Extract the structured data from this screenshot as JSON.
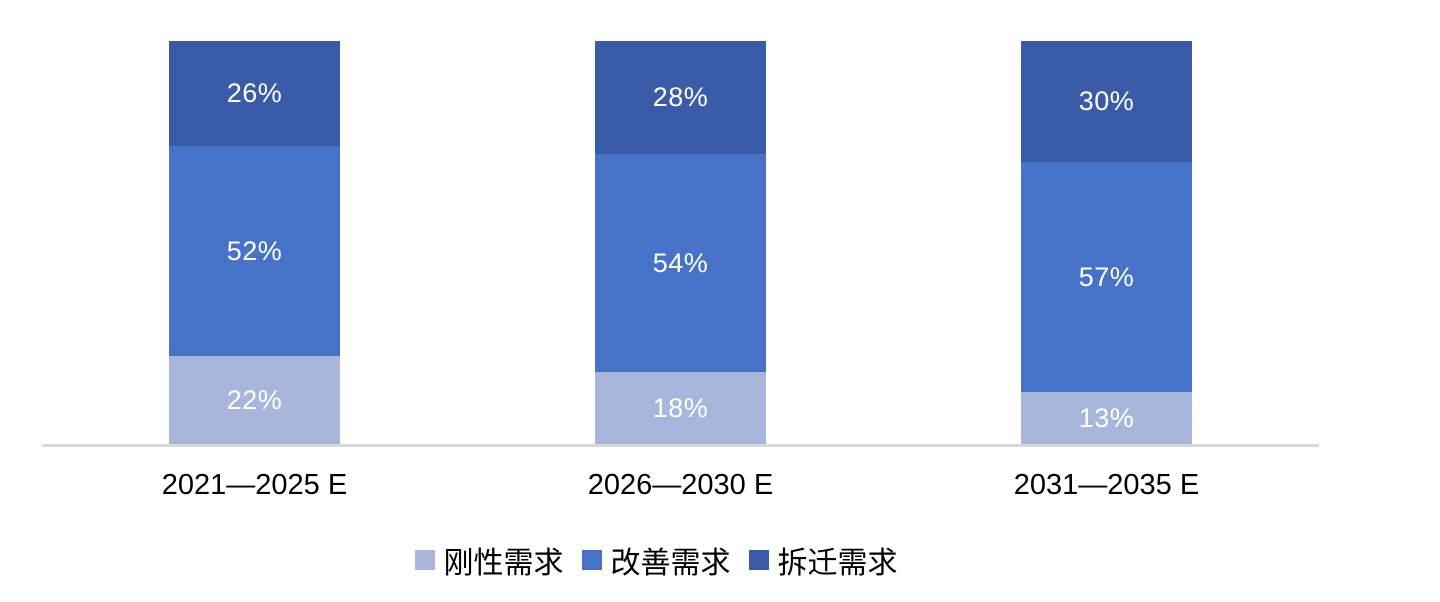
{
  "chart_data": {
    "type": "bar",
    "subtype": "stacked-100-percent",
    "title": "",
    "xlabel": "",
    "ylabel": "",
    "ylim": [
      0,
      100
    ],
    "grid": false,
    "legend_position": "bottom",
    "value_suffix": "%",
    "segment_label_color": "#ffffff",
    "axis_line_color": "#d9d9d9",
    "categories": [
      "2021—2025 E",
      "2026—2030 E",
      "2031—2035 E"
    ],
    "series": [
      {
        "name": "刚性需求",
        "color": "#a9b6dc",
        "values": [
          22,
          18,
          13
        ]
      },
      {
        "name": "改善需求",
        "color": "#4673c8",
        "values": [
          52,
          54,
          57
        ]
      },
      {
        "name": "拆迁需求",
        "color": "#3a5ca8",
        "values": [
          26,
          28,
          30
        ]
      }
    ]
  }
}
